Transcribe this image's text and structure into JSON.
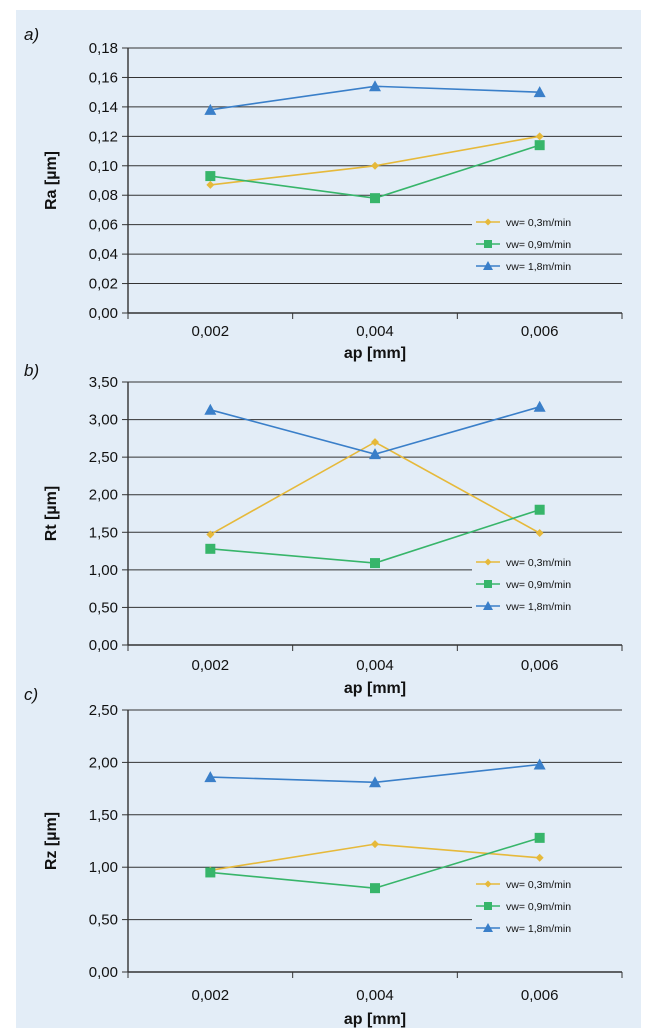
{
  "colors": {
    "background": "#e3edf7",
    "gridline": "#333333",
    "series_0_3": "#e6b93a",
    "series_0_9": "#37b56a",
    "series_1_8": "#3a7fc9"
  },
  "chart_data": [
    {
      "type": "line",
      "panel_label": "a)",
      "xlabel": "ap [mm]",
      "ylabel": "Ra [µm]",
      "categories": [
        "0,002",
        "0,004",
        "0,006"
      ],
      "ylim": [
        0,
        0.18
      ],
      "ytick_labels": [
        "0,00",
        "0,02",
        "0,04",
        "0,06",
        "0,08",
        "0,10",
        "0,12",
        "0,14",
        "0,16",
        "0,18"
      ],
      "grid": true,
      "legend_position": "bottom-right",
      "series": [
        {
          "name": "vw= 0,3m/min",
          "marker": "diamond",
          "color": "#e6b93a",
          "values": [
            0.087,
            0.1,
            0.12
          ]
        },
        {
          "name": "vw= 0,9m/min",
          "marker": "square",
          "color": "#37b56a",
          "values": [
            0.093,
            0.078,
            0.114
          ]
        },
        {
          "name": "vw= 1,8m/min",
          "marker": "triangle",
          "color": "#3a7fc9",
          "values": [
            0.138,
            0.154,
            0.15
          ]
        }
      ]
    },
    {
      "type": "line",
      "panel_label": "b)",
      "xlabel": "ap [mm]",
      "ylabel": "Rt [µm]",
      "categories": [
        "0,002",
        "0,004",
        "0,006"
      ],
      "ylim": [
        0,
        3.5
      ],
      "ytick_labels": [
        "0,00",
        "0,50",
        "1,00",
        "1,50",
        "2,00",
        "2,50",
        "3,00",
        "3,50"
      ],
      "grid": true,
      "legend_position": "bottom-right",
      "series": [
        {
          "name": "vw= 0,3m/min",
          "marker": "diamond",
          "color": "#e6b93a",
          "values": [
            1.47,
            2.7,
            1.49
          ]
        },
        {
          "name": "vw= 0,9m/min",
          "marker": "square",
          "color": "#37b56a",
          "values": [
            1.28,
            1.09,
            1.8
          ]
        },
        {
          "name": "vw= 1,8m/min",
          "marker": "triangle",
          "color": "#3a7fc9",
          "values": [
            3.13,
            2.54,
            3.17
          ]
        }
      ]
    },
    {
      "type": "line",
      "panel_label": "c)",
      "xlabel": "ap [mm]",
      "ylabel": "Rz [µm]",
      "categories": [
        "0,002",
        "0,004",
        "0,006"
      ],
      "ylim": [
        0,
        2.5
      ],
      "ytick_labels": [
        "0,00",
        "0,50",
        "1,00",
        "1,50",
        "2,00",
        "2,50"
      ],
      "grid": true,
      "legend_position": "bottom-right",
      "series": [
        {
          "name": "vw= 0,3m/min",
          "marker": "diamond",
          "color": "#e6b93a",
          "values": [
            0.97,
            1.22,
            1.09
          ]
        },
        {
          "name": "vw= 0,9m/min",
          "marker": "square",
          "color": "#37b56a",
          "values": [
            0.95,
            0.8,
            1.28
          ]
        },
        {
          "name": "vw= 1,8m/min",
          "marker": "triangle",
          "color": "#3a7fc9",
          "values": [
            1.86,
            1.81,
            1.98
          ]
        }
      ]
    }
  ]
}
